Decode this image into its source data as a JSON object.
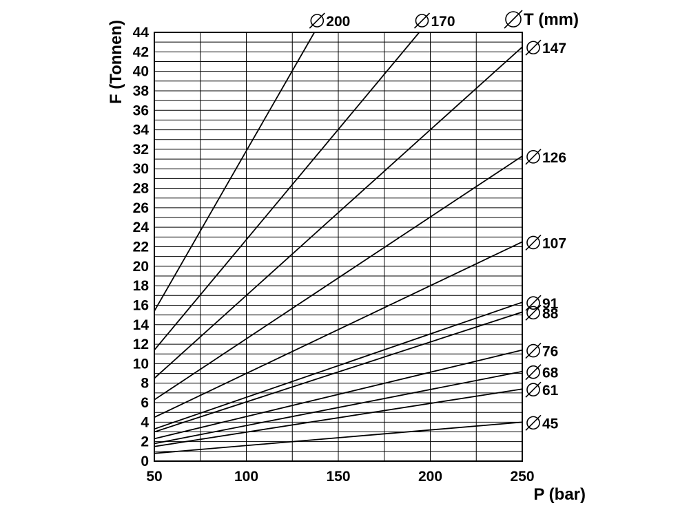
{
  "chart_data": {
    "type": "line",
    "xlabel": "P (bar)",
    "ylabel": "F (Tonnen)",
    "series_title": "T (mm)",
    "xlim": [
      50,
      250
    ],
    "ylim": [
      0,
      44
    ],
    "x_ticks": [
      50,
      100,
      150,
      200,
      250
    ],
    "y_ticks": [
      0,
      2,
      4,
      6,
      8,
      10,
      12,
      14,
      16,
      18,
      20,
      22,
      24,
      26,
      28,
      30,
      32,
      34,
      36,
      38,
      40,
      42,
      44
    ],
    "x_gridlines": [
      50,
      75,
      100,
      125,
      150,
      175,
      200,
      225,
      250
    ],
    "y_grid_step": 1,
    "grid": true,
    "series": [
      {
        "name": "45",
        "x": [
          50,
          250
        ],
        "y": [
          0.8,
          4.0
        ]
      },
      {
        "name": "61",
        "x": [
          50,
          250
        ],
        "y": [
          1.5,
          7.4
        ]
      },
      {
        "name": "68",
        "x": [
          50,
          250
        ],
        "y": [
          1.8,
          9.2
        ]
      },
      {
        "name": "76",
        "x": [
          50,
          250
        ],
        "y": [
          2.3,
          11.4
        ]
      },
      {
        "name": "88",
        "x": [
          50,
          250
        ],
        "y": [
          3.0,
          15.3
        ]
      },
      {
        "name": "91",
        "x": [
          50,
          250
        ],
        "y": [
          3.3,
          16.3
        ]
      },
      {
        "name": "107",
        "x": [
          50,
          250
        ],
        "y": [
          4.5,
          22.5
        ]
      },
      {
        "name": "126",
        "x": [
          50,
          250
        ],
        "y": [
          6.3,
          31.3
        ]
      },
      {
        "name": "147",
        "x": [
          50,
          250
        ],
        "y": [
          8.5,
          42.5
        ]
      },
      {
        "name": "170",
        "x": [
          50,
          194
        ],
        "y": [
          11.4,
          44
        ]
      },
      {
        "name": "200",
        "x": [
          50,
          137
        ],
        "y": [
          15.4,
          44
        ]
      }
    ]
  }
}
